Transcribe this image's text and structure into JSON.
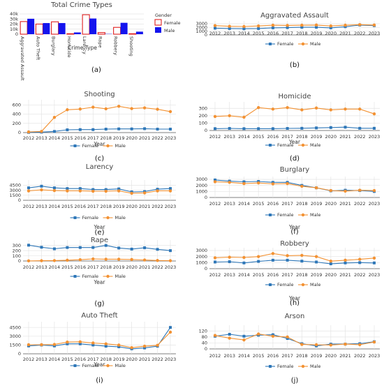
{
  "colors": {
    "female": "#2e77b8",
    "male": "#f39233",
    "bar_female": "#e02020",
    "bar_male": "#1414ee"
  },
  "chart_data": [
    {
      "id": "a",
      "panel_label": "(a)",
      "type": "bar",
      "title": "Total Crime Types",
      "xlabel": "Crime Type",
      "ylabel": "",
      "legend_title": "Gender",
      "categories": [
        "Aggravated Assault",
        "Auto Theft",
        "Burglary",
        "Homicide",
        "Larency",
        "Rape",
        "Robbery",
        "Shooting"
      ],
      "series": [
        {
          "name": "Female",
          "values": [
            25000,
            20000,
            24500,
            1000,
            38500,
            3200,
            13500,
            1000
          ]
        },
        {
          "name": "Male",
          "values": [
            30500,
            22000,
            22000,
            3500,
            31000,
            500,
            22500,
            5000
          ]
        }
      ],
      "yticks": [
        "0",
        "10k",
        "20k",
        "30k",
        "40k"
      ],
      "ylim": [
        0,
        40000
      ]
    },
    {
      "id": "b",
      "panel_label": "(b)",
      "type": "line",
      "title": "Aggravated Assault",
      "xlabel": "",
      "x": [
        "2012",
        "2013",
        "2014",
        "2015",
        "2016",
        "2017",
        "2018",
        "2019",
        "2020",
        "2021",
        "2022",
        "2023"
      ],
      "ylim": [
        0,
        3000
      ],
      "yticks": [
        "0",
        "1000",
        "2000",
        "3000"
      ],
      "series": [
        {
          "name": "Female",
          "values": [
            1800,
            1700,
            1650,
            1700,
            1900,
            1950,
            2050,
            2050,
            1900,
            2200,
            2650,
            2500
          ]
        },
        {
          "name": "Male",
          "values": [
            2500,
            2300,
            2250,
            2400,
            2600,
            2550,
            2600,
            2650,
            2400,
            2600,
            2750,
            2650
          ]
        }
      ]
    },
    {
      "id": "c",
      "panel_label": "(c)",
      "type": "line",
      "title": "Shooting",
      "xlabel": "Year",
      "x": [
        "2012",
        "2013",
        "2014",
        "2015",
        "2016",
        "2017",
        "2018",
        "2019",
        "2020",
        "2021",
        "2022",
        "2023"
      ],
      "ylim": [
        0,
        650
      ],
      "yticks": [
        "0",
        "200",
        "400",
        "600"
      ],
      "series": [
        {
          "name": "Female",
          "values": [
            5,
            10,
            25,
            60,
            65,
            65,
            75,
            80,
            80,
            85,
            75,
            75
          ]
        },
        {
          "name": "Male",
          "values": [
            15,
            25,
            330,
            495,
            510,
            550,
            515,
            570,
            520,
            535,
            505,
            455
          ]
        }
      ]
    },
    {
      "id": "d",
      "panel_label": "(d)",
      "type": "line",
      "title": "Homicide",
      "xlabel": "Year",
      "x": [
        "2012",
        "2013",
        "2014",
        "2015",
        "2016",
        "2017",
        "2018",
        "2019",
        "2020",
        "2021",
        "2022",
        "2023"
      ],
      "ylim": [
        0,
        350
      ],
      "yticks": [
        "0",
        "100",
        "200",
        "300"
      ],
      "series": [
        {
          "name": "Female",
          "values": [
            25,
            28,
            25,
            25,
            25,
            28,
            30,
            35,
            40,
            45,
            30,
            30
          ]
        },
        {
          "name": "Male",
          "values": [
            190,
            200,
            180,
            310,
            290,
            310,
            280,
            305,
            280,
            290,
            290,
            225
          ]
        }
      ]
    },
    {
      "id": "e",
      "panel_label": "(e)",
      "type": "line",
      "title": "Larency",
      "xlabel": "Year",
      "x": [
        "2012",
        "2013",
        "2014",
        "2015",
        "2016",
        "2017",
        "2018",
        "2019",
        "2020",
        "2021",
        "2022",
        "2023"
      ],
      "ylim": [
        0,
        5200
      ],
      "yticks": [
        "0",
        "1500",
        "3000",
        "4500"
      ],
      "series": [
        {
          "name": "Female",
          "values": [
            3700,
            4200,
            3700,
            3500,
            3500,
            3200,
            3200,
            3400,
            2500,
            2600,
            3300,
            3500
          ]
        },
        {
          "name": "Male",
          "values": [
            2800,
            3100,
            2900,
            2800,
            2800,
            2700,
            2700,
            2800,
            2100,
            2200,
            2800,
            2800
          ]
        }
      ]
    },
    {
      "id": "f",
      "panel_label": "(f)",
      "type": "line",
      "title": "Burglary",
      "xlabel": "Year",
      "x": [
        "2012",
        "2013",
        "2014",
        "2015",
        "2016",
        "2017",
        "2018",
        "2019",
        "2020",
        "2021",
        "2022",
        "2023"
      ],
      "ylim": [
        0,
        3000
      ],
      "yticks": [
        "0",
        "1000",
        "2000",
        "3000"
      ],
      "series": [
        {
          "name": "Female",
          "values": [
            2900,
            2700,
            2600,
            2650,
            2500,
            2500,
            2000,
            1600,
            1100,
            1200,
            1150,
            1000
          ]
        },
        {
          "name": "Male",
          "values": [
            2600,
            2500,
            2300,
            2400,
            2250,
            2300,
            1850,
            1600,
            1150,
            1050,
            1200,
            1150
          ]
        }
      ]
    },
    {
      "id": "g",
      "panel_label": "(g)",
      "type": "line",
      "title": "Rape",
      "xlabel": "Year",
      "x": [
        "2012",
        "2013",
        "2014",
        "2015",
        "2016",
        "2017",
        "2018",
        "2019",
        "2020",
        "2021",
        "2022",
        "2023"
      ],
      "ylim": [
        0,
        350
      ],
      "yticks": [
        "0",
        "100",
        "200",
        "300"
      ],
      "series": [
        {
          "name": "Female",
          "values": [
            305,
            265,
            235,
            260,
            260,
            260,
            300,
            250,
            230,
            255,
            225,
            200
          ]
        },
        {
          "name": "Male",
          "values": [
            2,
            5,
            8,
            15,
            25,
            40,
            35,
            35,
            30,
            20,
            10,
            5
          ]
        }
      ]
    },
    {
      "id": "h",
      "panel_label": "(h)",
      "type": "line",
      "title": "Robbery",
      "xlabel": "Year",
      "x": [
        "2012",
        "2013",
        "2014",
        "2015",
        "2016",
        "2017",
        "2018",
        "2019",
        "2020",
        "2021",
        "2022",
        "2023"
      ],
      "ylim": [
        0,
        3000
      ],
      "yticks": [
        "0",
        "1000",
        "2000",
        "3000"
      ],
      "series": [
        {
          "name": "Female",
          "values": [
            1100,
            1150,
            950,
            1200,
            1400,
            1400,
            1250,
            1100,
            800,
            950,
            1000,
            950
          ]
        },
        {
          "name": "Male",
          "values": [
            1800,
            1900,
            1850,
            2000,
            2500,
            2150,
            2200,
            2000,
            1250,
            1400,
            1550,
            1750
          ]
        }
      ]
    },
    {
      "id": "i",
      "panel_label": "(i)",
      "type": "line",
      "title": "Auto Theft",
      "xlabel": "Year",
      "x": [
        "2012",
        "2013",
        "2014",
        "2015",
        "2016",
        "2017",
        "2018",
        "2019",
        "2020",
        "2021",
        "2022",
        "2023"
      ],
      "ylim": [
        0,
        5000
      ],
      "yticks": [
        "0",
        "1500",
        "3000",
        "4500"
      ],
      "series": [
        {
          "name": "Female",
          "values": [
            1350,
            1500,
            1350,
            1700,
            1700,
            1500,
            1300,
            1200,
            850,
            1000,
            1300,
            4500
          ]
        },
        {
          "name": "Male",
          "values": [
            1550,
            1550,
            1600,
            2000,
            2050,
            1850,
            1700,
            1500,
            1050,
            1300,
            1450,
            3700
          ]
        }
      ]
    },
    {
      "id": "j",
      "panel_label": "(j)",
      "type": "line",
      "title": "Arson",
      "xlabel": "Year",
      "x": [
        "2012",
        "2013",
        "2014",
        "2015",
        "2016",
        "2017",
        "2018",
        "2019",
        "2020",
        "2021",
        "2022",
        "2023"
      ],
      "ylim": [
        0,
        140
      ],
      "yticks": [
        "0",
        "40",
        "80",
        "120"
      ],
      "series": [
        {
          "name": "Female",
          "values": [
            85,
            98,
            85,
            92,
            95,
            70,
            35,
            20,
            32,
            32,
            35,
            48
          ]
        },
        {
          "name": "Male",
          "values": [
            90,
            72,
            60,
            100,
            85,
            80,
            30,
            28,
            26,
            32,
            28,
            46
          ]
        }
      ]
    }
  ]
}
